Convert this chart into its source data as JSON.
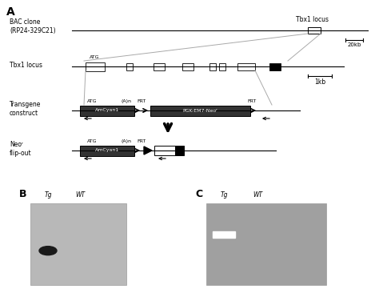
{
  "panel_A_label": "A",
  "panel_B_label": "B",
  "panel_C_label": "C",
  "bac_clone_label": "BAC clone\n(RP24-329C21)",
  "tbx1_locus_label_top": "Tbx1 locus",
  "tbx1_locus_label_mid": "Tbx1 locus",
  "transgene_label": "Transgene\nconstruct",
  "neor_label": "Neoʳ\nflip-out",
  "scale_20kb": "20kb",
  "scale_1kb": "1kb",
  "atg_label": "ATG",
  "an_label": "(A)n",
  "frt_label1": "FRT",
  "frt_label2": "FRT",
  "frt_label3": "FRT",
  "amcyan_label": "AmCyan1",
  "pgk_label": "PGK-EM7-Neoʳ",
  "tg_label": "Tg",
  "wt_label": "WT",
  "bg_color": "#ffffff",
  "line_color": "#000000",
  "zoom_line_color": "#aaaaaa",
  "blot_bg": "#b8b8b8",
  "gel_bg": "#a0a0a0",
  "band_dark": "#1a1a1a",
  "band_white": "#ffffff",
  "amcyan_box_color": "#333333",
  "pgk_box_color": "#333333"
}
